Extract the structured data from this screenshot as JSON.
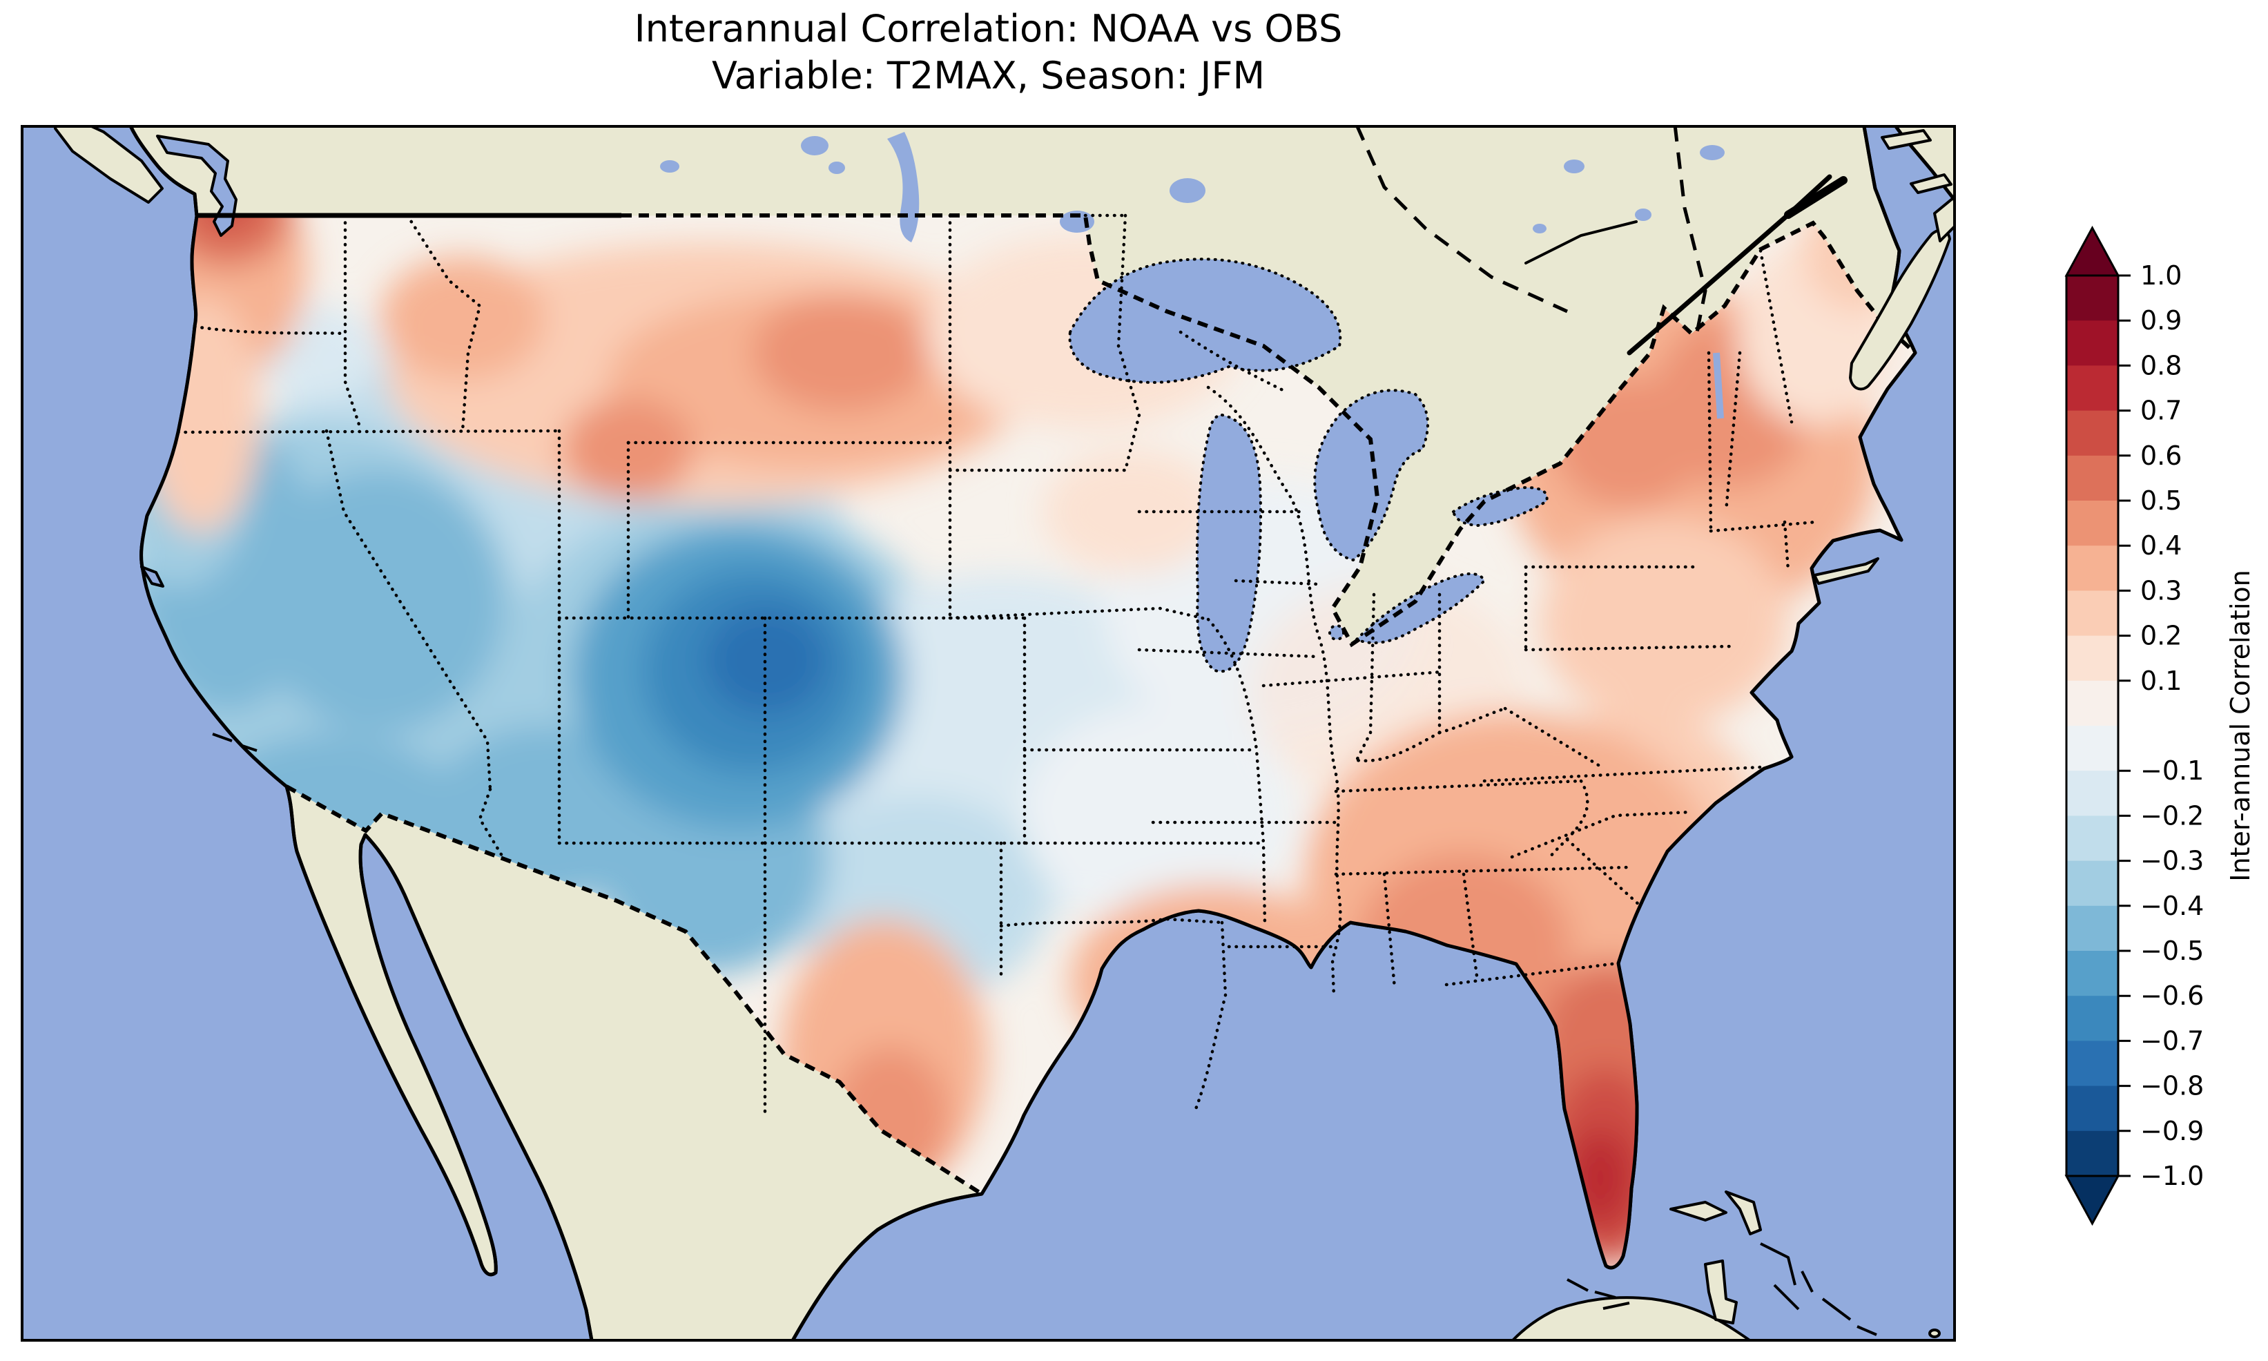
{
  "figure": {
    "title_line1": "Interannual Correlation: NOAA vs OBS",
    "title_line2": "Variable: T2MAX, Season: JFM"
  },
  "map": {
    "colors": {
      "ocean": "#92abdd",
      "land": "#e9e8d2",
      "lake": "#92abdd",
      "coastline": "#000000",
      "border": "#000000",
      "field_base": "#f7f2ec"
    }
  },
  "colorbar": {
    "label": "Inter-annual Correlation",
    "colormap": "RdBu_r",
    "extend": "both",
    "under_color": "#053061",
    "over_color": "#67001f",
    "bin_colors_low_to_high": [
      "#0c3e74",
      "#1a5999",
      "#2a71b2",
      "#3b88bd",
      "#57a0ca",
      "#7eb8d7",
      "#a2cde2",
      "#c1ddeb",
      "#dae9f2",
      "#edf2f5",
      "#f8f0eb",
      "#fbe2d3",
      "#facdb5",
      "#f6b293",
      "#ec9374",
      "#dd715a",
      "#cd4e44",
      "#bb2a33",
      "#9f1228",
      "#7a0622"
    ],
    "ticks": [
      {
        "label": "1.0",
        "value": 1.0
      },
      {
        "label": "0.9",
        "value": 0.9
      },
      {
        "label": "0.8",
        "value": 0.8
      },
      {
        "label": "0.7",
        "value": 0.7
      },
      {
        "label": "0.6",
        "value": 0.6
      },
      {
        "label": "0.5",
        "value": 0.5
      },
      {
        "label": "0.4",
        "value": 0.4
      },
      {
        "label": "0.3",
        "value": 0.3
      },
      {
        "label": "0.2",
        "value": 0.2
      },
      {
        "label": "0.1",
        "value": 0.1
      },
      {
        "label": "−0.1",
        "value": -0.1
      },
      {
        "label": "−0.2",
        "value": -0.2
      },
      {
        "label": "−0.3",
        "value": -0.3
      },
      {
        "label": "−0.4",
        "value": -0.4
      },
      {
        "label": "−0.5",
        "value": -0.5
      },
      {
        "label": "−0.6",
        "value": -0.6
      },
      {
        "label": "−0.7",
        "value": -0.7
      },
      {
        "label": "−0.8",
        "value": -0.8
      },
      {
        "label": "−0.9",
        "value": -0.9
      },
      {
        "label": "−1.0",
        "value": -1.0
      }
    ]
  },
  "chart_data": {
    "type": "heatmap",
    "title": "Interannual Correlation: NOAA vs OBS",
    "subtitle": "Variable: T2MAX, Season: JFM",
    "dataset_comparison": "NOAA vs OBS",
    "variable": "T2MAX",
    "season": "JFM",
    "domain": "Contiguous United States (map with Canada, Mexico, Caribbean context)",
    "value_name": "Inter-annual Correlation",
    "value_range": [
      -1.0,
      1.0
    ],
    "contour_interval": 0.1,
    "colormap": "RdBu_r",
    "legend_position": "right vertical colorbar with pointed extend arrows",
    "regional_values": [
      {
        "region": "Pacific Northwest (Puget Sound / W Washington)",
        "correlation": 0.6
      },
      {
        "region": "Oregon coast",
        "correlation": 0.3
      },
      {
        "region": "Northern Rockies / Montana",
        "correlation": 0.4
      },
      {
        "region": "North Dakota / northern Minnesota",
        "correlation": 0.2
      },
      {
        "region": "California coast and Central Valley",
        "correlation": -0.4
      },
      {
        "region": "Nevada / Great Basin",
        "correlation": -0.5
      },
      {
        "region": "Utah-Colorado border (field minimum)",
        "correlation": -0.8
      },
      {
        "region": "Four Corners / Arizona / New Mexico",
        "correlation": -0.5
      },
      {
        "region": "Kansas / Oklahoma / Texas panhandle",
        "correlation": -0.3
      },
      {
        "region": "Upper Midwest (Iowa / Illinois / Missouri)",
        "correlation": 0.0
      },
      {
        "region": "Great Lakes / Ohio Valley",
        "correlation": 0.1
      },
      {
        "region": "Northeast (New York / New England)",
        "correlation": 0.4
      },
      {
        "region": "Mid-Atlantic",
        "correlation": 0.3
      },
      {
        "region": "Southeast (Georgia / Alabama / Carolinas)",
        "correlation": 0.4
      },
      {
        "region": "Gulf Coast (Louisiana / Mississippi)",
        "correlation": 0.4
      },
      {
        "region": "South Texas",
        "correlation": 0.4
      },
      {
        "region": "Central / South Florida (field maximum)",
        "correlation": 0.7
      },
      {
        "region": "Maine",
        "correlation": 0.2
      }
    ]
  }
}
